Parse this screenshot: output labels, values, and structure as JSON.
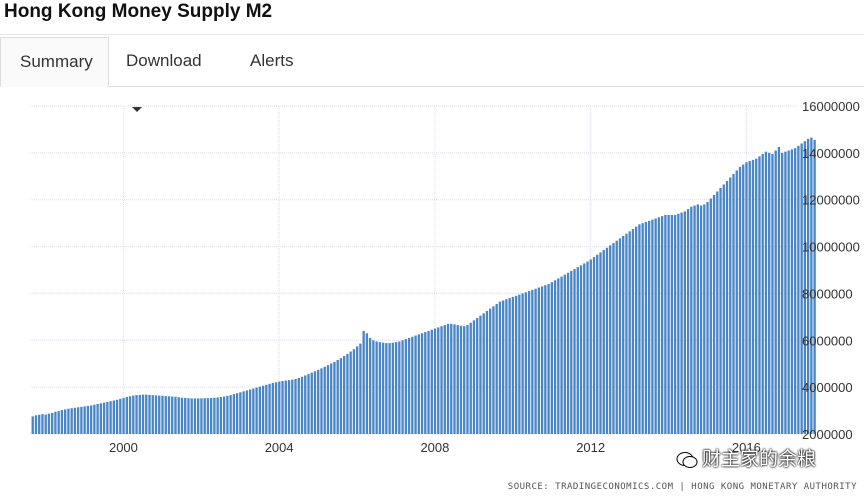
{
  "page": {
    "title": "Hong Kong Money Supply M2"
  },
  "tabs": [
    {
      "label": "Summary",
      "active": true
    },
    {
      "label": "Download",
      "has_dropdown": true
    },
    {
      "label": "Alerts"
    }
  ],
  "source_text": "SOURCE: TRADINGECONOMICS.COM  |  HONG KONG MONETARY AUTHORITY",
  "watermark_text": "财主家的余粮",
  "colors": {
    "bar": "#4a86c5",
    "grid": "#dcdcec",
    "border": "#dddddd"
  },
  "chart_data": {
    "type": "bar",
    "title": "Hong Kong Money Supply M2",
    "xlabel": "",
    "ylabel": "",
    "x_range": [
      1997.6,
      2017.3
    ],
    "ylim": [
      2000000,
      16000000
    ],
    "y_ticks": [
      16000000,
      14000000,
      12000000,
      10000000,
      8000000,
      6000000,
      4000000,
      2000000
    ],
    "y_tick_labels": [
      "16000000",
      "14000000",
      "12000000",
      "10000000",
      "8000000",
      "6000000",
      "4000000",
      "2000000"
    ],
    "x_ticks": [
      2000,
      2004,
      2008,
      2012,
      2016
    ],
    "x_tick_labels": [
      "2000",
      "2004",
      "2008",
      "2012",
      "2016"
    ],
    "grid": true,
    "y_axis_position": "right",
    "x_start": 1997.67,
    "x_step": 0.08333,
    "values": [
      2750000,
      2800000,
      2820000,
      2850000,
      2830000,
      2870000,
      2900000,
      2950000,
      2980000,
      3020000,
      3050000,
      3080000,
      3100000,
      3120000,
      3140000,
      3160000,
      3180000,
      3200000,
      3220000,
      3250000,
      3280000,
      3310000,
      3340000,
      3370000,
      3400000,
      3430000,
      3460000,
      3500000,
      3540000,
      3580000,
      3610000,
      3640000,
      3660000,
      3670000,
      3680000,
      3680000,
      3670000,
      3660000,
      3650000,
      3640000,
      3630000,
      3620000,
      3610000,
      3600000,
      3590000,
      3570000,
      3550000,
      3540000,
      3530000,
      3520000,
      3520000,
      3520000,
      3520000,
      3530000,
      3530000,
      3540000,
      3550000,
      3560000,
      3580000,
      3600000,
      3630000,
      3660000,
      3700000,
      3740000,
      3780000,
      3820000,
      3860000,
      3900000,
      3940000,
      3980000,
      4020000,
      4060000,
      4100000,
      4140000,
      4180000,
      4210000,
      4240000,
      4260000,
      4280000,
      4300000,
      4320000,
      4350000,
      4390000,
      4440000,
      4500000,
      4560000,
      4620000,
      4680000,
      4740000,
      4800000,
      4870000,
      4940000,
      5010000,
      5080000,
      5160000,
      5240000,
      5330000,
      5420000,
      5520000,
      5620000,
      5740000,
      5860000,
      6400000,
      6300000,
      6100000,
      6000000,
      5950000,
      5920000,
      5900000,
      5880000,
      5880000,
      5900000,
      5920000,
      5950000,
      6000000,
      6050000,
      6100000,
      6150000,
      6200000,
      6250000,
      6300000,
      6350000,
      6400000,
      6450000,
      6500000,
      6550000,
      6600000,
      6650000,
      6700000,
      6700000,
      6680000,
      6650000,
      6620000,
      6600000,
      6650000,
      6750000,
      6850000,
      6950000,
      7050000,
      7150000,
      7250000,
      7350000,
      7450000,
      7550000,
      7650000,
      7700000,
      7750000,
      7800000,
      7850000,
      7900000,
      7950000,
      8000000,
      8050000,
      8100000,
      8150000,
      8200000,
      8250000,
      8300000,
      8350000,
      8400000,
      8480000,
      8560000,
      8640000,
      8720000,
      8800000,
      8880000,
      8960000,
      9040000,
      9120000,
      9200000,
      9280000,
      9360000,
      9450000,
      9550000,
      9650000,
      9750000,
      9850000,
      9950000,
      10050000,
      10150000,
      10250000,
      10350000,
      10450000,
      10550000,
      10650000,
      10750000,
      10850000,
      10950000,
      11000000,
      11050000,
      11100000,
      11150000,
      11200000,
      11250000,
      11300000,
      11350000,
      11350000,
      11350000,
      11350000,
      11400000,
      11450000,
      11500000,
      11600000,
      11700000,
      11750000,
      11800000,
      11750000,
      11800000,
      11900000,
      12050000,
      12200000,
      12350000,
      12500000,
      12650000,
      12800000,
      12950000,
      13100000,
      13250000,
      13400000,
      13500000,
      13600000,
      13650000,
      13700000,
      13750000,
      13850000,
      13950000,
      14050000,
      14000000,
      13950000,
      14100000,
      14250000,
      14000000,
      14050000,
      14100000,
      14150000,
      14200000,
      14300000,
      14400000,
      14500000,
      14600000,
      14650000,
      14550000
    ]
  }
}
